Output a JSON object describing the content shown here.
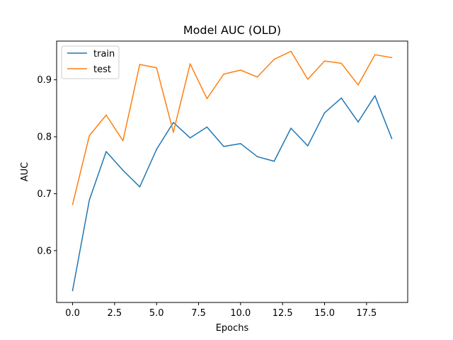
{
  "chart_data": {
    "type": "line",
    "title": "Model AUC (OLD)",
    "xlabel": "Epochs",
    "ylabel": "AUC",
    "xlim": [
      -0.95,
      19.95
    ],
    "ylim": [
      0.509,
      0.968
    ],
    "x_ticks": [
      0,
      2.5,
      5,
      7.5,
      10,
      12.5,
      15,
      17.5
    ],
    "x_tick_labels": [
      "0.0",
      "2.5",
      "5.0",
      "7.5",
      "10.0",
      "12.5",
      "15.0",
      "17.5"
    ],
    "y_ticks": [
      0.6,
      0.7,
      0.8,
      0.9
    ],
    "y_tick_labels": [
      "0.6",
      "0.7",
      "0.8",
      "0.9"
    ],
    "grid": false,
    "legend_position": "upper-left",
    "x": [
      0,
      1,
      2,
      3,
      4,
      5,
      6,
      7,
      8,
      9,
      10,
      11,
      12,
      13,
      14,
      15,
      16,
      17,
      18,
      19
    ],
    "series": [
      {
        "name": "train",
        "color": "#1f77b4",
        "values": [
          0.53,
          0.689,
          0.774,
          0.741,
          0.712,
          0.778,
          0.825,
          0.798,
          0.817,
          0.783,
          0.788,
          0.765,
          0.757,
          0.815,
          0.784,
          0.842,
          0.868,
          0.826,
          0.872,
          0.797
        ]
      },
      {
        "name": "test",
        "color": "#ff7f0e",
        "values": [
          0.681,
          0.802,
          0.838,
          0.793,
          0.927,
          0.921,
          0.808,
          0.928,
          0.867,
          0.91,
          0.917,
          0.905,
          0.936,
          0.95,
          0.901,
          0.933,
          0.929,
          0.891,
          0.944,
          0.939
        ]
      }
    ]
  }
}
